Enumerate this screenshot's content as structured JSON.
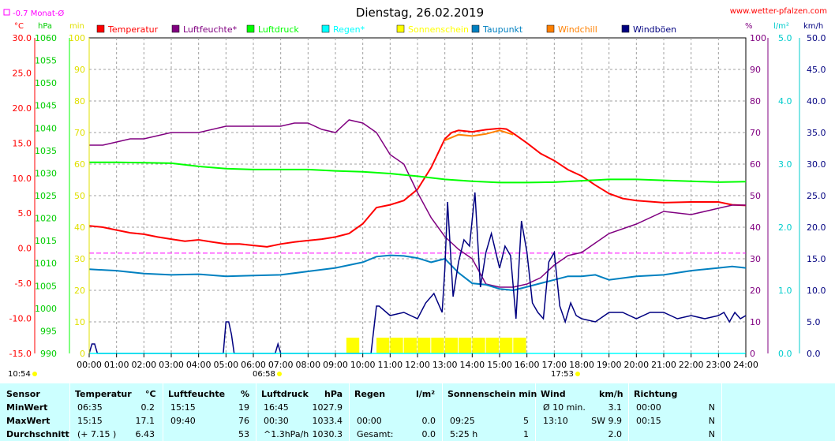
{
  "header": {
    "title": "Dienstag, 26.02.2019",
    "website": "www.wetter-pfalzen.com",
    "monthly_avg_label": "-0.7 Monat-Ø"
  },
  "axis_units": {
    "temp": "°C",
    "pressure": "hPa",
    "minutes": "min",
    "percent": "%",
    "rain": "l/m²",
    "wind": "km/h"
  },
  "axis_ticks": {
    "temp": [
      "30.0",
      "25.0",
      "20.0",
      "15.0",
      "10.0",
      "5.0",
      "0.0",
      "-5.0",
      "-10.0",
      "-15.0"
    ],
    "pressure": [
      "1060",
      "1055",
      "1050",
      "1045",
      "1040",
      "1035",
      "1030",
      "1025",
      "1020",
      "1015",
      "1010",
      "1005",
      "1000",
      "995",
      "990"
    ],
    "minutes": [
      "100",
      "90",
      "80",
      "70",
      "60",
      "50",
      "40",
      "30",
      "20",
      "10",
      "0"
    ],
    "percent": [
      "100",
      "90",
      "80",
      "70",
      "60",
      "50",
      "40",
      "30",
      "20",
      "10",
      "0"
    ],
    "rain": [
      "5.0",
      "4.0",
      "3.0",
      "2.0",
      "1.0",
      "0.0"
    ],
    "wind": [
      "50.0",
      "45.0",
      "40.0",
      "35.0",
      "30.0",
      "25.0",
      "20.0",
      "15.0",
      "10.0",
      "5.0",
      "0.0"
    ],
    "x": [
      "00:00",
      "01:00",
      "02:00",
      "03:00",
      "04:00",
      "05:00",
      "06:00",
      "07:00",
      "08:00",
      "09:00",
      "10:00",
      "11:00",
      "12:00",
      "13:00",
      "14:00",
      "15:00",
      "16:00",
      "17:00",
      "18:00",
      "19:00",
      "20:00",
      "21:00",
      "22:00",
      "23:00",
      "24:00"
    ]
  },
  "sun_times": {
    "sunrise": "06:58",
    "sunset": "17:53",
    "daylength": "10:54"
  },
  "legend": [
    {
      "label": "Temperatur",
      "color": "#ff0000"
    },
    {
      "label": "Luftfeuchte*",
      "color": "#800080"
    },
    {
      "label": "Luftdruck",
      "color": "#00ff00"
    },
    {
      "label": "Regen*",
      "color": "#00ffff"
    },
    {
      "label": "Sonnenschein",
      "color": "#ffff00"
    },
    {
      "label": "Taupunkt",
      "color": "#0080c0"
    },
    {
      "label": "Windchill",
      "color": "#ff8000"
    },
    {
      "label": "Windböen",
      "color": "#000080"
    }
  ],
  "colors": {
    "temp_axis": "#ff0000",
    "pressure_axis": "#00ff00",
    "minutes_axis": "#ffff00",
    "percent_axis": "#800080",
    "rain_axis": "#00ffff",
    "wind_axis": "#000080",
    "monthly_avg": "#ff00ff"
  },
  "chart_data": {
    "type": "line",
    "x_unit": "hour",
    "xlim": [
      0,
      24
    ],
    "monthly_avg_temp": -0.7,
    "axes": {
      "temp": {
        "unit": "°C",
        "lim": [
          -15,
          30
        ]
      },
      "pressure": {
        "unit": "hPa",
        "lim": [
          990,
          1060
        ]
      },
      "minutes": {
        "unit": "min",
        "lim": [
          0,
          100
        ]
      },
      "percent": {
        "unit": "%",
        "lim": [
          0,
          100
        ]
      },
      "rain": {
        "unit": "l/m²",
        "lim": [
          0,
          5
        ]
      },
      "wind": {
        "unit": "km/h",
        "lim": [
          0,
          50
        ]
      }
    },
    "grid": true,
    "series": [
      {
        "name": "Temperatur",
        "axis": "temp",
        "color": "#ff0000",
        "x": [
          0,
          0.5,
          1,
          1.5,
          2,
          2.5,
          3,
          3.5,
          4,
          4.5,
          5,
          5.5,
          6,
          6.5,
          7,
          7.5,
          8,
          8.5,
          9,
          9.5,
          10,
          10.5,
          11,
          11.5,
          12,
          12.5,
          13,
          13.25,
          13.5,
          14,
          14.5,
          15,
          15.25,
          15.5,
          16,
          16.5,
          17,
          17.5,
          18,
          18.5,
          19,
          19.5,
          20,
          21,
          22,
          23,
          23.5,
          24
        ],
        "y": [
          3.2,
          3.0,
          2.6,
          2.2,
          2.0,
          1.6,
          1.3,
          1.0,
          1.2,
          0.9,
          0.6,
          0.6,
          0.4,
          0.2,
          0.6,
          0.9,
          1.1,
          1.3,
          1.6,
          2.1,
          3.5,
          5.8,
          6.2,
          6.8,
          8.4,
          11.5,
          15.6,
          16.5,
          16.8,
          16.6,
          16.9,
          17.1,
          17.0,
          16.4,
          15.0,
          13.5,
          12.5,
          11.2,
          10.3,
          9.0,
          7.8,
          7.1,
          6.8,
          6.5,
          6.6,
          6.6,
          6.2,
          6.1
        ]
      },
      {
        "name": "Windchill",
        "axis": "temp",
        "color": "#ff8000",
        "x": [
          13,
          13.5,
          14,
          14.5,
          15,
          15.5
        ],
        "y": [
          15.4,
          16.2,
          16.0,
          16.3,
          16.8,
          16.2
        ]
      },
      {
        "name": "Luftfeuchte*",
        "axis": "percent",
        "color": "#800080",
        "x": [
          0,
          0.5,
          1,
          1.5,
          2,
          3,
          4,
          5,
          6,
          7,
          7.5,
          8,
          8.5,
          9,
          9.5,
          10,
          10.5,
          11,
          11.5,
          12,
          12.5,
          13,
          13.5,
          14,
          14.5,
          15,
          15.5,
          16,
          16.5,
          17,
          17.5,
          18,
          18.5,
          19,
          20,
          21,
          22,
          23,
          23.5,
          24
        ],
        "y": [
          66,
          66,
          67,
          68,
          68,
          70,
          70,
          72,
          72,
          72,
          73,
          73,
          71,
          70,
          74,
          73,
          70,
          63,
          60,
          51,
          43,
          37,
          33,
          30,
          22,
          21,
          21,
          22,
          24,
          28,
          31,
          32,
          35,
          38,
          41,
          45,
          44,
          46,
          47,
          47
        ]
      },
      {
        "name": "Luftdruck",
        "axis": "pressure",
        "color": "#00ff00",
        "x": [
          0,
          1,
          2,
          3,
          4,
          5,
          6,
          7,
          8,
          9,
          10,
          11,
          12,
          13,
          14,
          15,
          16,
          17,
          18,
          19,
          20,
          21,
          22,
          23,
          24
        ],
        "y": [
          1032.4,
          1032.4,
          1032.3,
          1032.2,
          1031.5,
          1031.0,
          1030.8,
          1030.8,
          1030.8,
          1030.5,
          1030.3,
          1029.9,
          1029.3,
          1028.6,
          1028.2,
          1027.9,
          1027.9,
          1028.0,
          1028.3,
          1028.6,
          1028.6,
          1028.4,
          1028.2,
          1028.0,
          1028.1
        ]
      },
      {
        "name": "Taupunkt",
        "axis": "temp",
        "color": "#0080c0",
        "x": [
          0,
          1,
          2,
          3,
          4,
          5,
          6,
          7,
          8,
          9,
          10,
          10.5,
          11,
          11.5,
          12,
          12.5,
          13,
          13.5,
          14,
          14.5,
          15,
          15.5,
          16,
          16.5,
          17,
          17.5,
          18,
          18.5,
          19,
          20,
          21,
          22,
          23,
          23.5,
          24
        ],
        "y": [
          -3.0,
          -3.2,
          -3.6,
          -3.8,
          -3.7,
          -4.0,
          -3.9,
          -3.8,
          -3.3,
          -2.8,
          -2.0,
          -1.2,
          -1.0,
          -1.1,
          -1.4,
          -2.0,
          -1.5,
          -3.5,
          -5.0,
          -5.2,
          -5.8,
          -6.0,
          -5.5,
          -5.0,
          -4.5,
          -4.0,
          -4.0,
          -3.8,
          -4.5,
          -4.0,
          -3.8,
          -3.2,
          -2.8,
          -2.6,
          -2.8
        ]
      },
      {
        "name": "Windböen",
        "axis": "wind",
        "color": "#000080",
        "x": [
          0,
          0.1,
          0.2,
          0.3,
          4.9,
          5.0,
          5.1,
          5.2,
          5.3,
          6.8,
          6.9,
          7.0,
          10.3,
          10.5,
          10.6,
          11,
          11.5,
          12,
          12.3,
          12.6,
          12.9,
          13.0,
          13.1,
          13.3,
          13.5,
          13.7,
          13.9,
          14.1,
          14.3,
          14.5,
          14.7,
          15.0,
          15.2,
          15.4,
          15.6,
          15.8,
          16.0,
          16.2,
          16.4,
          16.6,
          16.8,
          17.0,
          17.2,
          17.4,
          17.6,
          17.8,
          18.0,
          18.5,
          19,
          19.5,
          20,
          20.5,
          21,
          21.5,
          22,
          22.5,
          23,
          23.2,
          23.4,
          23.6,
          23.8,
          24
        ],
        "y": [
          0,
          1.5,
          1.5,
          0,
          0,
          5.0,
          5.0,
          3.0,
          0,
          0,
          1.5,
          0,
          0,
          7.5,
          7.5,
          6.0,
          6.5,
          5.5,
          8.0,
          9.5,
          6.5,
          13.5,
          24.0,
          9.0,
          14.5,
          18.0,
          17.0,
          25.5,
          10.5,
          16.0,
          19.0,
          13.5,
          17.0,
          15.5,
          5.5,
          21.0,
          16.0,
          8.0,
          6.5,
          5.5,
          14.5,
          16.0,
          7.5,
          5.0,
          8.0,
          6.0,
          5.5,
          5.0,
          6.5,
          6.5,
          5.5,
          6.5,
          6.5,
          5.5,
          6.0,
          5.5,
          6.0,
          6.5,
          5.0,
          6.5,
          5.5,
          6.0
        ]
      },
      {
        "name": "Sonnenschein",
        "axis": "minutes",
        "type": "bar",
        "color": "#ffff00",
        "x": [
          9.4,
          10.5,
          11,
          11.5,
          12,
          12.5,
          13,
          13.5,
          14,
          14.5,
          15,
          15.5
        ],
        "y": [
          5,
          5,
          5,
          5,
          5,
          5,
          5,
          5,
          5,
          5,
          5,
          5
        ]
      },
      {
        "name": "Regen*",
        "axis": "rain",
        "color": "#00ffff",
        "x": [
          0,
          24
        ],
        "y": [
          0,
          0
        ]
      }
    ]
  },
  "stats": {
    "headers": {
      "sensor": "Sensor",
      "temp": "Temperatur",
      "temp_unit": "°C",
      "hum": "Luftfeuchte",
      "hum_unit": "%",
      "press": "Luftdruck",
      "press_unit": "hPa",
      "rain": "Regen",
      "rain_unit": "l/m²",
      "sun": "Sonnenschein min",
      "wind": "Wind",
      "wind_unit": "km/h",
      "dir": "Richtung"
    },
    "rows": [
      {
        "label": "MinWert",
        "temp_time": "06:35",
        "temp_val": "0.2",
        "hum_time": "15:15",
        "hum_val": "19",
        "press_time": "16:45",
        "press_val": "1027.9",
        "rain_time": "",
        "rain_val": "",
        "sun_time": "",
        "sun_val": "",
        "wind_time": "Ø 10 min.",
        "wind_val": "3.1",
        "dir_time": "00:00",
        "dir_val": "N"
      },
      {
        "label": "MaxWert",
        "temp_time": "15:15",
        "temp_val": "17.1",
        "hum_time": "09:40",
        "hum_val": "76",
        "press_time": "00:30",
        "press_val": "1033.4",
        "rain_time": "00:00",
        "rain_val": "0.0",
        "sun_time": "09:25",
        "sun_val": "5",
        "wind_time": "13:10",
        "wind_val": "SW 9.9",
        "dir_time": "00:15",
        "dir_val": "N"
      },
      {
        "label": "Durchschnitt",
        "temp_time": "(+ 7.15 )",
        "temp_val": "6.43",
        "hum_time": "",
        "hum_val": "53",
        "press_time": "^1.3hPa/h",
        "press_val": "1030.3",
        "rain_time": "Gesamt:",
        "rain_val": "0.0",
        "sun_time": "5:25 h",
        "sun_val": "1",
        "wind_time": "",
        "wind_val": "2.0",
        "dir_time": "",
        "dir_val": "N"
      }
    ]
  }
}
